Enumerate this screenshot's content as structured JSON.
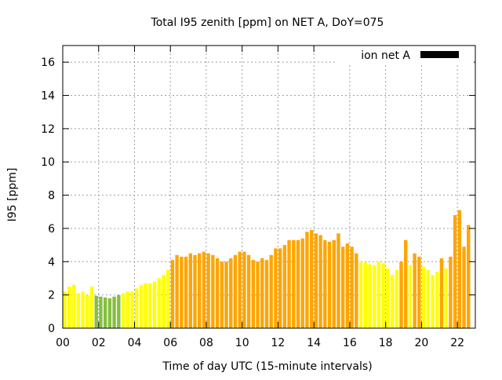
{
  "chart_data": {
    "type": "bar",
    "title": "Total I95 zenith [ppm] on NET A, DoY=075",
    "xlabel": "Time of day UTC (15-minute intervals)",
    "ylabel": "I95 [ppm]",
    "ylim": [
      0,
      17
    ],
    "xlim": [
      0,
      23
    ],
    "yticks": [
      0,
      2,
      4,
      6,
      8,
      10,
      12,
      14,
      16
    ],
    "xticks": [
      "00",
      "02",
      "04",
      "06",
      "08",
      "10",
      "12",
      "14",
      "16",
      "18",
      "20",
      "22"
    ],
    "grid": true,
    "legend": {
      "label": "ion net A",
      "placement": "top-right",
      "color": "#000000"
    },
    "colors": {
      "y": "#ffff00",
      "g": "#86bf41",
      "o": "#ffa500"
    },
    "interval_hours": 0.25,
    "values": [
      2.2,
      2.5,
      2.6,
      2.1,
      2.2,
      2.0,
      2.5,
      1.95,
      1.9,
      1.85,
      1.8,
      1.9,
      2.0,
      2.1,
      2.2,
      2.2,
      2.4,
      2.6,
      2.7,
      2.7,
      2.8,
      3.0,
      3.2,
      3.5,
      4.1,
      4.4,
      4.3,
      4.3,
      4.5,
      4.4,
      4.5,
      4.6,
      4.5,
      4.4,
      4.2,
      4.0,
      4.0,
      4.2,
      4.4,
      4.6,
      4.6,
      4.4,
      4.1,
      4.0,
      4.2,
      4.1,
      4.4,
      4.8,
      4.8,
      5.0,
      5.3,
      5.3,
      5.3,
      5.4,
      5.8,
      5.9,
      5.7,
      5.6,
      5.3,
      5.2,
      5.3,
      5.7,
      4.9,
      5.1,
      4.9,
      4.5,
      3.95,
      3.95,
      3.85,
      3.8,
      4.0,
      3.9,
      3.6,
      3.2,
      3.5,
      4.0,
      5.3,
      3.8,
      4.5,
      4.3,
      3.7,
      3.5,
      3.2,
      3.4,
      4.2,
      3.6,
      4.3,
      6.8,
      7.1,
      4.9,
      6.2
    ],
    "bar_colors": [
      "y",
      "y",
      "y",
      "y",
      "y",
      "y",
      "y",
      "g",
      "g",
      "g",
      "g",
      "g",
      "g",
      "y",
      "y",
      "y",
      "y",
      "y",
      "y",
      "y",
      "y",
      "y",
      "y",
      "y",
      "o",
      "o",
      "o",
      "o",
      "o",
      "o",
      "o",
      "o",
      "o",
      "o",
      "o",
      "o",
      "o",
      "o",
      "o",
      "o",
      "o",
      "o",
      "o",
      "o",
      "o",
      "o",
      "o",
      "o",
      "o",
      "o",
      "o",
      "o",
      "o",
      "o",
      "o",
      "o",
      "o",
      "o",
      "o",
      "o",
      "o",
      "o",
      "o",
      "o",
      "o",
      "o",
      "y",
      "y",
      "y",
      "y",
      "y",
      "y",
      "y",
      "y",
      "y",
      "o",
      "o",
      "y",
      "o",
      "o",
      "y",
      "y",
      "y",
      "y",
      "o",
      "y",
      "o",
      "o",
      "o",
      "o",
      "o"
    ]
  }
}
